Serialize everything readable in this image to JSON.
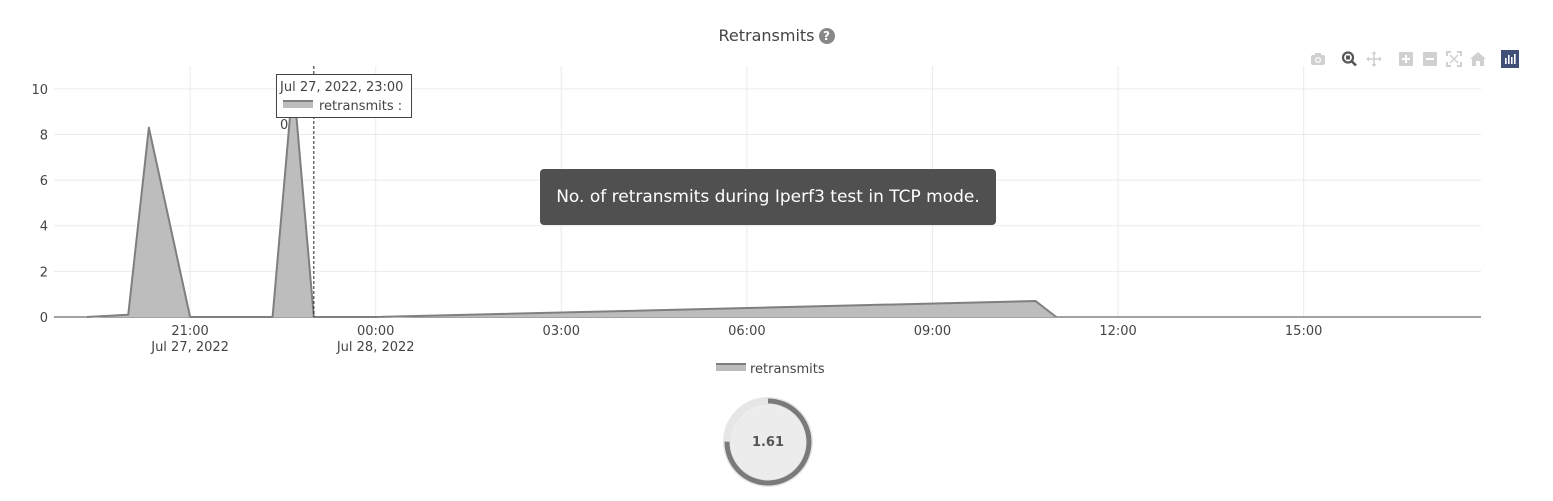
{
  "header": {
    "title": "Retransmits",
    "help_icon": "question-circle-icon"
  },
  "modebar": {
    "buttons": [
      {
        "name": "camera-icon",
        "title": "Download plot as a png",
        "color": "#d0d0d0"
      },
      {
        "name": "zoom-icon",
        "title": "Zoom",
        "color": "#555555"
      },
      {
        "name": "pan-icon",
        "title": "Pan",
        "color": "#d0d0d0"
      },
      {
        "name": "zoom-in-icon",
        "title": "Zoom in",
        "color": "#d0d0d0"
      },
      {
        "name": "zoom-out-icon",
        "title": "Zoom out",
        "color": "#d0d0d0"
      },
      {
        "name": "autoscale-icon",
        "title": "Autoscale",
        "color": "#d0d0d0"
      },
      {
        "name": "home-icon",
        "title": "Reset axes",
        "color": "#d0d0d0"
      },
      {
        "name": "plotly-logo-icon",
        "title": "Produced with Plotly",
        "color": "#3f4f75"
      }
    ]
  },
  "chart_data": {
    "type": "area",
    "title": "Retransmits",
    "xlabel": "",
    "ylabel": "",
    "ylim": [
      0,
      11
    ],
    "xlim": [
      "2022-07-27 18:48",
      "2022-07-28 17:52"
    ],
    "x_ticks": [
      {
        "value": "2022-07-27 21:00",
        "label": "21:00",
        "sublabel": "Jul 27, 2022"
      },
      {
        "value": "2022-07-28 00:00",
        "label": "00:00",
        "sublabel": "Jul 28, 2022"
      },
      {
        "value": "2022-07-28 03:00",
        "label": "03:00",
        "sublabel": ""
      },
      {
        "value": "2022-07-28 06:00",
        "label": "06:00",
        "sublabel": ""
      },
      {
        "value": "2022-07-28 09:00",
        "label": "09:00",
        "sublabel": ""
      },
      {
        "value": "2022-07-28 12:00",
        "label": "12:00",
        "sublabel": ""
      },
      {
        "value": "2022-07-28 15:00",
        "label": "15:00",
        "sublabel": ""
      }
    ],
    "y_ticks": [
      0,
      2,
      4,
      6,
      8,
      10
    ],
    "grid": true,
    "legend_position": "bottom-center",
    "series": [
      {
        "name": "retransmits",
        "fill_color": "#bdbdbd",
        "line_color": "#7f7f7f",
        "points": [
          {
            "x": "2022-07-27 19:20",
            "y": 0
          },
          {
            "x": "2022-07-27 20:00",
            "y": 0.1
          },
          {
            "x": "2022-07-27 20:20",
            "y": 8.3
          },
          {
            "x": "2022-07-27 21:00",
            "y": 0
          },
          {
            "x": "2022-07-27 22:20",
            "y": 0
          },
          {
            "x": "2022-07-27 22:40",
            "y": 10.4
          },
          {
            "x": "2022-07-27 23:00",
            "y": 0
          },
          {
            "x": "2022-07-28 00:00",
            "y": 0
          },
          {
            "x": "2022-07-28 10:40",
            "y": 0.7
          },
          {
            "x": "2022-07-28 11:00",
            "y": 0
          }
        ]
      }
    ]
  },
  "hover": {
    "x_value": "2022-07-27 23:00",
    "date_label": "Jul 27, 2022, 23:00",
    "series_label": "retransmits : 0"
  },
  "description_tooltip": {
    "text": "No. of retransmits during Iperf3 test in TCP mode."
  },
  "legend": {
    "label": "retransmits"
  },
  "gauge": {
    "value": "1.61",
    "fraction": 0.75,
    "ring_color": "#7a7a7a",
    "track_color": "#e6e6e6"
  }
}
